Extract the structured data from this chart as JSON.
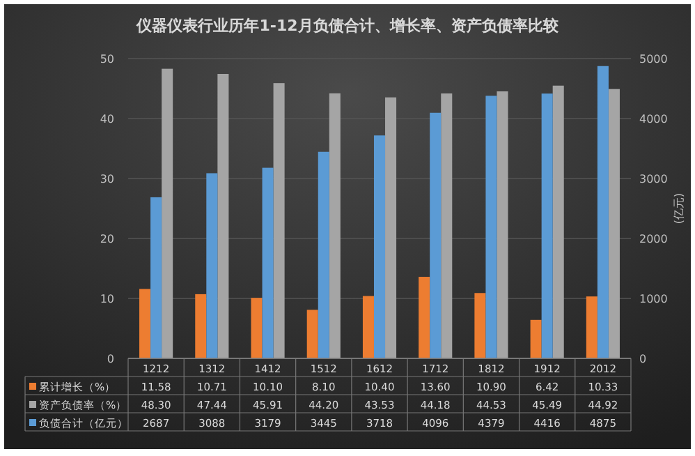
{
  "chart_data": {
    "type": "bar",
    "title": "仪器仪表行业历年1-12月负债合计、增长率、资产负债率比较",
    "y2label": "(亿元)",
    "categories": [
      "1212",
      "1312",
      "1412",
      "1512",
      "1612",
      "1712",
      "1812",
      "1912",
      "2012"
    ],
    "series": [
      {
        "name": "累计增长（%）",
        "color": "#ed7d31",
        "values": [
          11.58,
          10.71,
          10.1,
          8.1,
          10.4,
          13.6,
          10.9,
          6.42,
          10.33
        ],
        "value_labels": [
          "11.58",
          "10.71",
          "10.10",
          "8.10",
          "10.40",
          "13.60",
          "10.90",
          "6.42",
          "10.33"
        ]
      },
      {
        "name": "资产负债率（%）",
        "color": "#a5a5a5",
        "values": [
          48.3,
          47.44,
          45.91,
          44.2,
          43.53,
          44.18,
          44.53,
          45.49,
          44.92
        ],
        "value_labels": [
          "48.30",
          "47.44",
          "45.91",
          "44.20",
          "43.53",
          "44.18",
          "44.53",
          "45.49",
          "44.92"
        ]
      },
      {
        "name": "负债合计（亿元）",
        "color": "#5b9bd5",
        "axis": "y2",
        "values": [
          2687,
          3088,
          3179,
          3445,
          3718,
          4096,
          4379,
          4416,
          4875
        ],
        "value_labels": [
          "2687",
          "3088",
          "3179",
          "3445",
          "3718",
          "4096",
          "4379",
          "4416",
          "4875"
        ]
      }
    ],
    "ylim": [
      0,
      50
    ],
    "yticks": [
      0,
      10,
      20,
      30,
      40,
      50
    ],
    "y2lim": [
      0,
      5000
    ],
    "y2ticks": [
      0,
      1000,
      2000,
      3000,
      4000,
      5000
    ],
    "grid": "y",
    "legend": "bottom left"
  }
}
